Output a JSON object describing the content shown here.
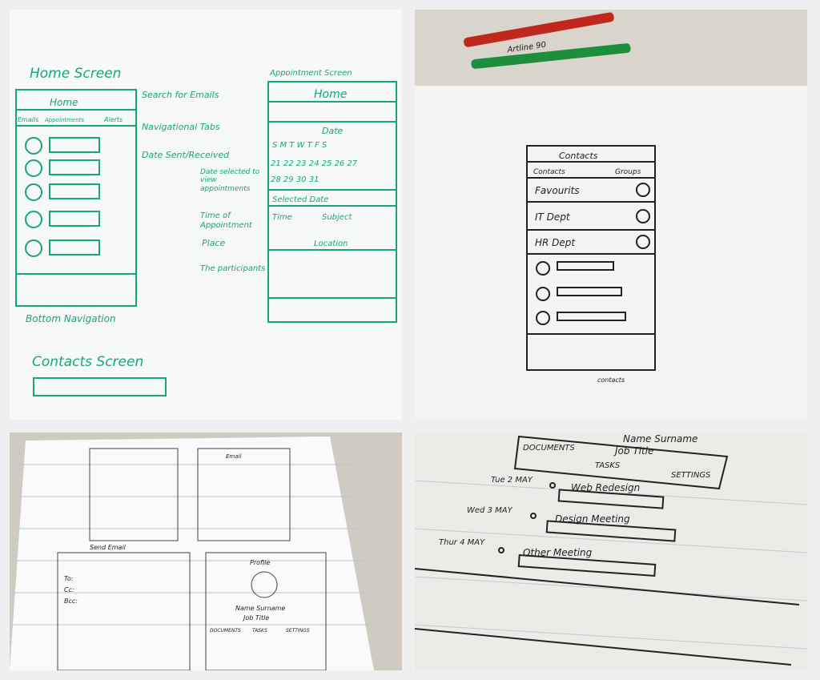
{
  "panels": {
    "whiteboard": {
      "ink_color": "#17a57a",
      "home_title": "Home Screen",
      "home_header": "Home",
      "tabs": [
        "Emails",
        "Appointments",
        "Alerts"
      ],
      "date_label": "Date",
      "notes": {
        "search": "Search for Emails",
        "nav_tabs": "Navigational Tabs",
        "date_sent": "Date Sent/Received",
        "bottom_nav": "Bottom Navigation",
        "date_selected": "Date selected to view appointments",
        "time": "Time of Appointment",
        "place": "Place",
        "participants": "The participants"
      },
      "appointment_title": "Appointment Screen",
      "appointment_header": "Home",
      "week_days": "S M T W T F S",
      "week1": "21 22 23 24 25 26 27",
      "week2": "28 29 30 31",
      "calendar_heading": "Date",
      "selected_date": "Selected Date",
      "time_label": "Time",
      "subject_label": "Subject",
      "location_label": "Location",
      "contacts_title": "Contacts Screen"
    },
    "paper_sketch": {
      "ink_color": "#222222",
      "markers": [
        "Artline 90"
      ],
      "header": "Contacts",
      "tabs": [
        "Contacts",
        "Groups"
      ],
      "groups": [
        "Favourits",
        "IT Dept",
        "HR Dept"
      ],
      "caption": "contacts"
    },
    "notebook": {
      "screens": [
        "Email",
        "Send Email",
        "Profile"
      ],
      "profile_name": "Name Surname",
      "profile_job": "Job Title",
      "profile_tabs": [
        "DOCUMENTS",
        "TASKS",
        "SETTINGS"
      ],
      "fields": [
        "To:",
        "Cc:",
        "Bcc:"
      ]
    },
    "closeup": {
      "name": "Name Surname",
      "job": "Job Title",
      "tabs": [
        "DOCUMENTS",
        "TASKS",
        "SETTINGS"
      ],
      "tasks": [
        {
          "date": "Tue 2 MAY",
          "title": "Web Redesign"
        },
        {
          "date": "Wed 3 MAY",
          "title": "Design Meeting"
        },
        {
          "date": "Thur 4 MAY",
          "title": "Other Meeting"
        }
      ]
    }
  }
}
